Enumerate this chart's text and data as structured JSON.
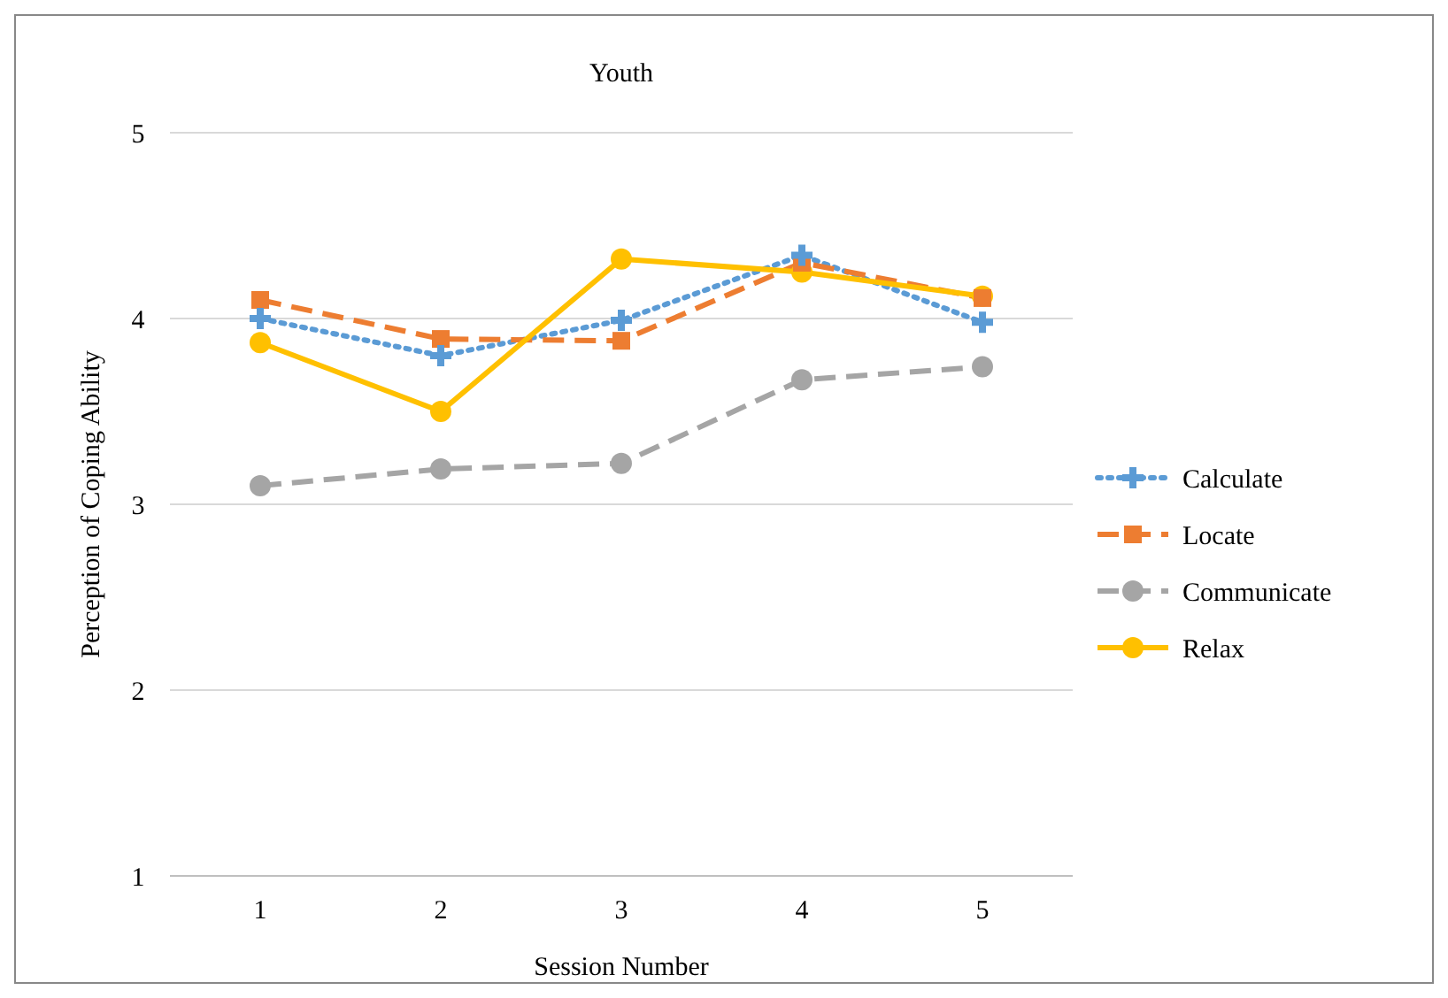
{
  "chart_data": {
    "type": "line",
    "title": "Youth",
    "xlabel": "Session Number",
    "ylabel": "Perception of Coping Ability",
    "categories": [
      "1",
      "2",
      "3",
      "4",
      "5"
    ],
    "ylim": [
      1,
      5
    ],
    "yticks": [
      1,
      2,
      3,
      4,
      5
    ],
    "grid": "y",
    "legend": "right",
    "series": [
      {
        "name": "Calculate",
        "color": "#5b9bd5",
        "line_style": "dotted",
        "marker": "cross",
        "values": [
          4.0,
          3.8,
          3.99,
          4.34,
          3.98
        ]
      },
      {
        "name": "Locate",
        "color": "#ed7d31",
        "line_style": "dashed",
        "marker": "square",
        "values": [
          4.1,
          3.89,
          3.88,
          4.3,
          4.11
        ]
      },
      {
        "name": "Communicate",
        "color": "#a5a5a5",
        "line_style": "dashed",
        "marker": "circle",
        "values": [
          3.1,
          3.19,
          3.22,
          3.67,
          3.74
        ]
      },
      {
        "name": "Relax",
        "color": "#ffc000",
        "line_style": "solid",
        "marker": "circle",
        "values": [
          3.87,
          3.5,
          4.32,
          4.25,
          4.12
        ]
      }
    ]
  }
}
